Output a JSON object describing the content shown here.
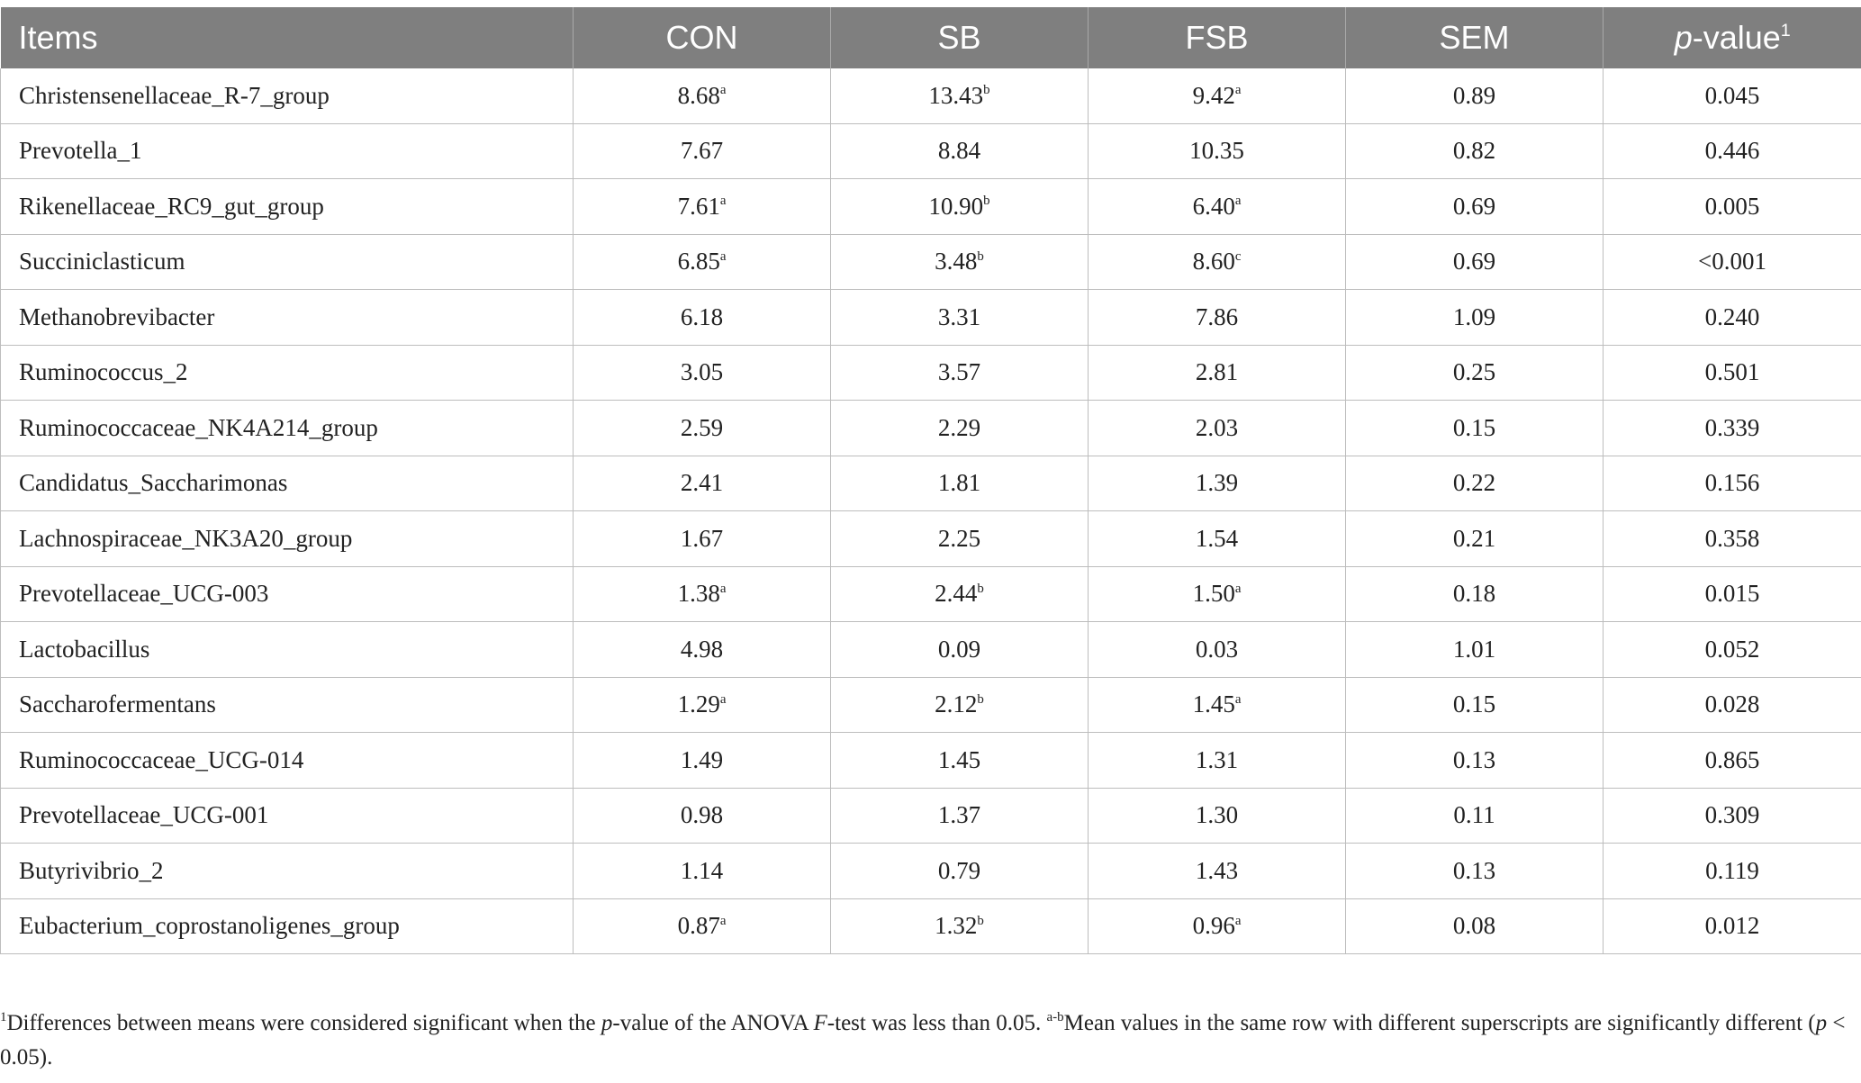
{
  "table": {
    "headers": {
      "items": "Items",
      "con": "CON",
      "sb": "SB",
      "fsb": "FSB",
      "sem": "SEM",
      "p_italic": "p",
      "p_rest": "-value",
      "p_sup": "1"
    },
    "rows": [
      {
        "item": "Christensenellaceae_R-7_group",
        "con": "8.68",
        "con_sup": "a",
        "sb": "13.43",
        "sb_sup": "b",
        "fsb": "9.42",
        "fsb_sup": "a",
        "sem": "0.89",
        "p": "0.045"
      },
      {
        "item": "Prevotella_1",
        "con": "7.67",
        "con_sup": "",
        "sb": "8.84",
        "sb_sup": "",
        "fsb": "10.35",
        "fsb_sup": "",
        "sem": "0.82",
        "p": "0.446"
      },
      {
        "item": "Rikenellaceae_RC9_gut_group",
        "con": "7.61",
        "con_sup": "a",
        "sb": "10.90",
        "sb_sup": "b",
        "fsb": "6.40",
        "fsb_sup": "a",
        "sem": "0.69",
        "p": "0.005"
      },
      {
        "item": "Succiniclasticum",
        "con": "6.85",
        "con_sup": "a",
        "sb": "3.48",
        "sb_sup": "b",
        "fsb": "8.60",
        "fsb_sup": "c",
        "sem": "0.69",
        "p": "<0.001"
      },
      {
        "item": "Methanobrevibacter",
        "con": "6.18",
        "con_sup": "",
        "sb": "3.31",
        "sb_sup": "",
        "fsb": "7.86",
        "fsb_sup": "",
        "sem": "1.09",
        "p": "0.240"
      },
      {
        "item": "Ruminococcus_2",
        "con": "3.05",
        "con_sup": "",
        "sb": "3.57",
        "sb_sup": "",
        "fsb": "2.81",
        "fsb_sup": "",
        "sem": "0.25",
        "p": "0.501"
      },
      {
        "item": "Ruminococcaceae_NK4A214_group",
        "con": "2.59",
        "con_sup": "",
        "sb": "2.29",
        "sb_sup": "",
        "fsb": "2.03",
        "fsb_sup": "",
        "sem": "0.15",
        "p": "0.339"
      },
      {
        "item": "Candidatus_Saccharimonas",
        "con": "2.41",
        "con_sup": "",
        "sb": "1.81",
        "sb_sup": "",
        "fsb": "1.39",
        "fsb_sup": "",
        "sem": "0.22",
        "p": "0.156"
      },
      {
        "item": "Lachnospiraceae_NK3A20_group",
        "con": "1.67",
        "con_sup": "",
        "sb": "2.25",
        "sb_sup": "",
        "fsb": "1.54",
        "fsb_sup": "",
        "sem": "0.21",
        "p": "0.358"
      },
      {
        "item": "Prevotellaceae_UCG-003",
        "con": "1.38",
        "con_sup": "a",
        "sb": "2.44",
        "sb_sup": "b",
        "fsb": "1.50",
        "fsb_sup": "a",
        "sem": "0.18",
        "p": "0.015"
      },
      {
        "item": "Lactobacillus",
        "con": "4.98",
        "con_sup": "",
        "sb": "0.09",
        "sb_sup": "",
        "fsb": "0.03",
        "fsb_sup": "",
        "sem": "1.01",
        "p": "0.052"
      },
      {
        "item": "Saccharofermentans",
        "con": "1.29",
        "con_sup": "a",
        "sb": "2.12",
        "sb_sup": "b",
        "fsb": "1.45",
        "fsb_sup": "a",
        "sem": "0.15",
        "p": "0.028"
      },
      {
        "item": "Ruminococcaceae_UCG-014",
        "con": "1.49",
        "con_sup": "",
        "sb": "1.45",
        "sb_sup": "",
        "fsb": "1.31",
        "fsb_sup": "",
        "sem": "0.13",
        "p": "0.865"
      },
      {
        "item": "Prevotellaceae_UCG-001",
        "con": "0.98",
        "con_sup": "",
        "sb": "1.37",
        "sb_sup": "",
        "fsb": "1.30",
        "fsb_sup": "",
        "sem": "0.11",
        "p": "0.309"
      },
      {
        "item": "Butyrivibrio_2",
        "con": "1.14",
        "con_sup": "",
        "sb": "0.79",
        "sb_sup": "",
        "fsb": "1.43",
        "fsb_sup": "",
        "sem": "0.13",
        "p": "0.119"
      },
      {
        "item": "Eubacterium_coprostanoligenes_group",
        "con": "0.87",
        "con_sup": "a",
        "sb": "1.32",
        "sb_sup": "b",
        "fsb": "0.96",
        "fsb_sup": "a",
        "sem": "0.08",
        "p": "0.012"
      }
    ]
  },
  "footnote": {
    "sup1": "1",
    "part1": "Differences between means were considered significant when the ",
    "p_italic": "p",
    "part2": "-value of the ANOVA ",
    "f_italic": "F",
    "part3": "-test was less than 0.05. ",
    "sup_ab": "a-b",
    "part4": "Mean values in the same row with different superscripts are significantly different (",
    "p2_italic": "p",
    "part5": " < 0.05)."
  }
}
